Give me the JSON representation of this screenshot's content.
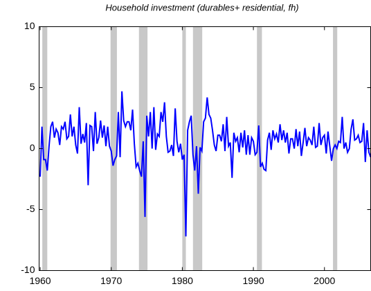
{
  "chart_data": {
    "type": "line",
    "title": "Household investment (durables+ residential, fh)",
    "color": "#0000ff",
    "recession_color": "#c8c8c8",
    "recessions": [
      [
        1960.3,
        1961.0
      ],
      [
        1969.9,
        1970.8
      ],
      [
        1973.9,
        1975.1
      ],
      [
        1980.0,
        1980.5
      ],
      [
        1981.5,
        1982.8
      ],
      [
        1990.5,
        1991.2
      ],
      [
        2001.2,
        2001.8
      ]
    ],
    "x": [
      1960,
      1960.25,
      1960.5,
      1960.75,
      1961,
      1961.25,
      1961.5,
      1961.75,
      1962,
      1962.25,
      1962.5,
      1962.75,
      1963,
      1963.25,
      1963.5,
      1963.75,
      1964,
      1964.25,
      1964.5,
      1964.75,
      1965,
      1965.25,
      1965.5,
      1965.75,
      1966,
      1966.25,
      1966.5,
      1966.75,
      1967,
      1967.25,
      1967.5,
      1967.75,
      1968,
      1968.25,
      1968.5,
      1968.75,
      1969,
      1969.25,
      1969.5,
      1969.75,
      1970,
      1970.25,
      1970.5,
      1970.75,
      1971,
      1971.25,
      1971.5,
      1971.75,
      1972,
      1972.25,
      1972.5,
      1972.75,
      1973,
      1973.25,
      1973.5,
      1973.75,
      1974,
      1974.25,
      1974.5,
      1974.75,
      1975,
      1975.25,
      1975.5,
      1975.75,
      1976,
      1976.25,
      1976.5,
      1976.75,
      1977,
      1977.25,
      1977.5,
      1977.75,
      1978,
      1978.25,
      1978.5,
      1978.75,
      1979,
      1979.25,
      1979.5,
      1979.75,
      1980,
      1980.25,
      1980.5,
      1980.75,
      1981,
      1981.25,
      1981.5,
      1981.75,
      1982,
      1982.25,
      1982.5,
      1982.75,
      1983,
      1983.25,
      1983.5,
      1983.75,
      1984,
      1984.25,
      1984.5,
      1984.75,
      1985,
      1985.25,
      1985.5,
      1985.75,
      1986,
      1986.25,
      1986.5,
      1986.75,
      1987,
      1987.25,
      1987.5,
      1987.75,
      1988,
      1988.25,
      1988.5,
      1988.75,
      1989,
      1989.25,
      1989.5,
      1989.75,
      1990,
      1990.25,
      1990.5,
      1990.75,
      1991,
      1991.25,
      1991.5,
      1991.75,
      1992,
      1992.25,
      1992.5,
      1992.75,
      1993,
      1993.25,
      1993.5,
      1993.75,
      1994,
      1994.25,
      1994.5,
      1994.75,
      1995,
      1995.25,
      1995.5,
      1995.75,
      1996,
      1996.25,
      1996.5,
      1996.75,
      1997,
      1997.25,
      1997.5,
      1997.75,
      1998,
      1998.25,
      1998.5,
      1998.75,
      1999,
      1999.25,
      1999.5,
      1999.75,
      2000,
      2000.25,
      2000.5,
      2000.75,
      2001,
      2001.25,
      2001.5,
      2001.75,
      2002,
      2002.25,
      2002.5,
      2002.75,
      2003,
      2003.25,
      2003.5,
      2003.75,
      2004,
      2004.25,
      2004.5,
      2004.75,
      2005,
      2005.25,
      2005.5,
      2005.75,
      2006,
      2006.25,
      2006.5
    ],
    "values": [
      -2.3,
      1.8,
      -0.9,
      -0.9,
      -1.8,
      0.2,
      1.8,
      2.2,
      0.9,
      1.6,
      1.3,
      0.3,
      1.8,
      1.6,
      2.2,
      0.8,
      1.0,
      2.8,
      1.0,
      1.8,
      0.3,
      -0.4,
      3.4,
      0.4,
      1.2,
      0.5,
      2.1,
      -3.0,
      1.9,
      1.8,
      -0.2,
      3.0,
      0.4,
      0.9,
      2.3,
      0.9,
      1.9,
      0.2,
      1.8,
      0.2,
      -0.2,
      -1.4,
      -0.9,
      -0.6,
      3.0,
      -0.7,
      4.7,
      2.3,
      1.8,
      2.2,
      2.2,
      1.5,
      3.2,
      0.4,
      -1.5,
      -1.2,
      -1.8,
      -2.3,
      0.6,
      -5.6,
      2.7,
      1.0,
      3.0,
      0.0,
      3.4,
      -0.1,
      1.2,
      1.0,
      3.0,
      2.2,
      3.8,
      1.0,
      -0.3,
      -0.2,
      0.3,
      -0.6,
      3.3,
      0.6,
      -0.3,
      0.4,
      -0.9,
      -0.5,
      -7.2,
      1.5,
      2.2,
      2.7,
      -0.5,
      -1.8,
      0.2,
      -3.7,
      0.1,
      -0.2,
      2.2,
      2.5,
      4.2,
      2.8,
      2.5,
      1.5,
      0.3,
      -0.2,
      1.1,
      1.1,
      0.6,
      2.0,
      -0.2,
      2.6,
      0.2,
      0.5,
      -2.4,
      1.3,
      0.6,
      0.9,
      -0.3,
      1.3,
      0.1,
      1.5,
      -0.5,
      1.1,
      -0.5,
      0.9,
      0.6,
      -0.5,
      -0.3,
      1.9,
      -1.5,
      -1.2,
      -1.7,
      -1.8,
      0.7,
      1.3,
      -0.1,
      1.5,
      0.8,
      1.2,
      0.5,
      2.0,
      0.7,
      1.5,
      0.5,
      1.3,
      -0.4,
      0.8,
      0.8,
      0.0,
      1.6,
      0.2,
      1.4,
      -0.6,
      0.5,
      1.7,
      0.2,
      0.9,
      0.7,
      0.3,
      1.8,
      0.1,
      0.2,
      2.1,
      0.3,
      0.9,
      1.1,
      -0.4,
      1.4,
      0.2,
      -1.0,
      0.0,
      0.3,
      0.0,
      0.6,
      0.5,
      2.6,
      0.0,
      0.5,
      -0.3,
      0.0,
      1.6,
      2.4,
      0.7,
      0.8,
      1.1,
      0.5,
      0.6,
      2.1,
      -1.1,
      1.5,
      -0.3,
      -0.7
    ],
    "xlim": [
      1959.85,
      2006.5
    ],
    "xticks": [
      1960,
      1970,
      1980,
      1990,
      2000
    ],
    "ylim": [
      -10,
      10
    ],
    "yticks": [
      -10,
      -5,
      0,
      5,
      10
    ]
  }
}
